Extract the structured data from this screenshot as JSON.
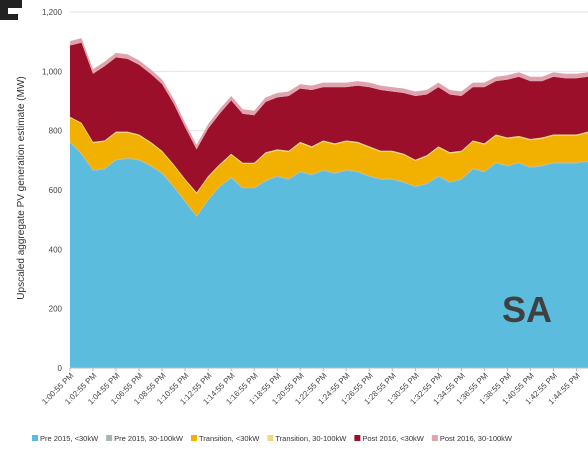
{
  "chart_data": {
    "type": "area",
    "stacked": true,
    "ylabel": "Upscaled aggregate PV generation estimate (MW)",
    "ylim": [
      0,
      1200
    ],
    "yticks": [
      0,
      200,
      400,
      600,
      800,
      1000,
      1200
    ],
    "ytick_labels": [
      "0",
      "200",
      "400",
      "600",
      "800",
      "1,000",
      "1,200"
    ],
    "grid": true,
    "region_label": "SA",
    "legend_position": "bottom",
    "x_tick_labels": [
      "1:00:55 PM",
      "1:02:55 PM",
      "1:04:55 PM",
      "1:06:55 PM",
      "1:08:55 PM",
      "1:10:55 PM",
      "1:12:55 PM",
      "1:14:55 PM",
      "1:16:55 PM",
      "1:18:55 PM",
      "1:20:55 PM",
      "1:22:55 PM",
      "1:24:55 PM",
      "1:26:55 PM",
      "1:28:55 PM",
      "1:30:55 PM",
      "1:32:55 PM",
      "1:34:55 PM",
      "1:36:55 PM",
      "1:38:55 PM",
      "1:40:55 PM",
      "1:42:55 PM",
      "1:44:55 PM"
    ],
    "x": [
      "1:00:55 PM",
      "1:01:55 PM",
      "1:02:55 PM",
      "1:03:55 PM",
      "1:04:55 PM",
      "1:05:55 PM",
      "1:06:55 PM",
      "1:07:55 PM",
      "1:08:55 PM",
      "1:09:55 PM",
      "1:10:55 PM",
      "1:11:55 PM",
      "1:12:55 PM",
      "1:13:55 PM",
      "1:14:55 PM",
      "1:15:55 PM",
      "1:16:55 PM",
      "1:17:55 PM",
      "1:18:55 PM",
      "1:19:55 PM",
      "1:20:55 PM",
      "1:21:55 PM",
      "1:22:55 PM",
      "1:23:55 PM",
      "1:24:55 PM",
      "1:25:55 PM",
      "1:26:55 PM",
      "1:27:55 PM",
      "1:28:55 PM",
      "1:29:55 PM",
      "1:30:55 PM",
      "1:31:55 PM",
      "1:32:55 PM",
      "1:33:55 PM",
      "1:34:55 PM",
      "1:35:55 PM",
      "1:36:55 PM",
      "1:37:55 PM",
      "1:38:55 PM",
      "1:39:55 PM",
      "1:40:55 PM",
      "1:41:55 PM",
      "1:42:55 PM",
      "1:43:55 PM",
      "1:44:55 PM",
      "1:45:55 PM"
    ],
    "series": [
      {
        "name": "Pre 2015, <30kW",
        "color": "#5bbcdd",
        "values": [
          760,
          720,
          665,
          670,
          700,
          705,
          700,
          680,
          655,
          610,
          560,
          510,
          565,
          610,
          640,
          605,
          605,
          630,
          645,
          635,
          660,
          650,
          665,
          655,
          665,
          660,
          645,
          635,
          635,
          625,
          610,
          620,
          645,
          625,
          635,
          670,
          660,
          690,
          680,
          690,
          675,
          680,
          690,
          690,
          690,
          695
        ]
      },
      {
        "name": "Pre 2015, 30-100kW",
        "color": "#a9b4ac",
        "values": [
          3,
          3,
          3,
          3,
          3,
          3,
          3,
          3,
          3,
          3,
          3,
          3,
          3,
          3,
          3,
          3,
          3,
          3,
          3,
          3,
          3,
          3,
          3,
          3,
          3,
          3,
          3,
          3,
          3,
          3,
          3,
          3,
          3,
          3,
          3,
          3,
          3,
          3,
          3,
          3,
          3,
          3,
          3,
          3,
          3,
          3
        ]
      },
      {
        "name": "Transition, <30kW",
        "color": "#f2b100",
        "values": [
          80,
          100,
          90,
          90,
          90,
          85,
          80,
          75,
          70,
          70,
          70,
          75,
          75,
          70,
          75,
          80,
          80,
          90,
          85,
          90,
          95,
          90,
          95,
          95,
          95,
          95,
          95,
          90,
          90,
          90,
          85,
          90,
          95,
          95,
          90,
          90,
          90,
          90,
          90,
          85,
          90,
          90,
          90,
          90,
          90,
          95
        ]
      },
      {
        "name": "Transition, 30-100kW",
        "color": "#f4d97c",
        "values": [
          4,
          4,
          4,
          4,
          4,
          4,
          4,
          4,
          4,
          4,
          4,
          4,
          4,
          4,
          4,
          4,
          4,
          4,
          4,
          4,
          4,
          4,
          4,
          4,
          4,
          4,
          4,
          4,
          4,
          4,
          4,
          4,
          4,
          4,
          4,
          4,
          4,
          4,
          4,
          4,
          4,
          4,
          4,
          4,
          4,
          4
        ]
      },
      {
        "name": "Post 2016, <30kW",
        "color": "#9b0f2a",
        "values": [
          240,
          270,
          230,
          250,
          250,
          245,
          235,
          230,
          225,
          205,
          175,
          145,
          160,
          170,
          180,
          165,
          160,
          170,
          175,
          185,
          180,
          190,
          180,
          190,
          180,
          190,
          200,
          205,
          200,
          205,
          215,
          205,
          200,
          195,
          185,
          180,
          190,
          180,
          195,
          200,
          195,
          190,
          195,
          190,
          190,
          185
        ]
      },
      {
        "name": "Post 2016, 30-100kW",
        "color": "#e0a3ad",
        "values": [
          15,
          15,
          15,
          15,
          15,
          15,
          15,
          15,
          15,
          15,
          15,
          15,
          15,
          15,
          15,
          15,
          15,
          15,
          15,
          15,
          15,
          15,
          15,
          15,
          15,
          15,
          15,
          15,
          15,
          15,
          15,
          15,
          15,
          15,
          15,
          15,
          15,
          15,
          15,
          15,
          15,
          15,
          15,
          15,
          15,
          15
        ]
      }
    ]
  }
}
